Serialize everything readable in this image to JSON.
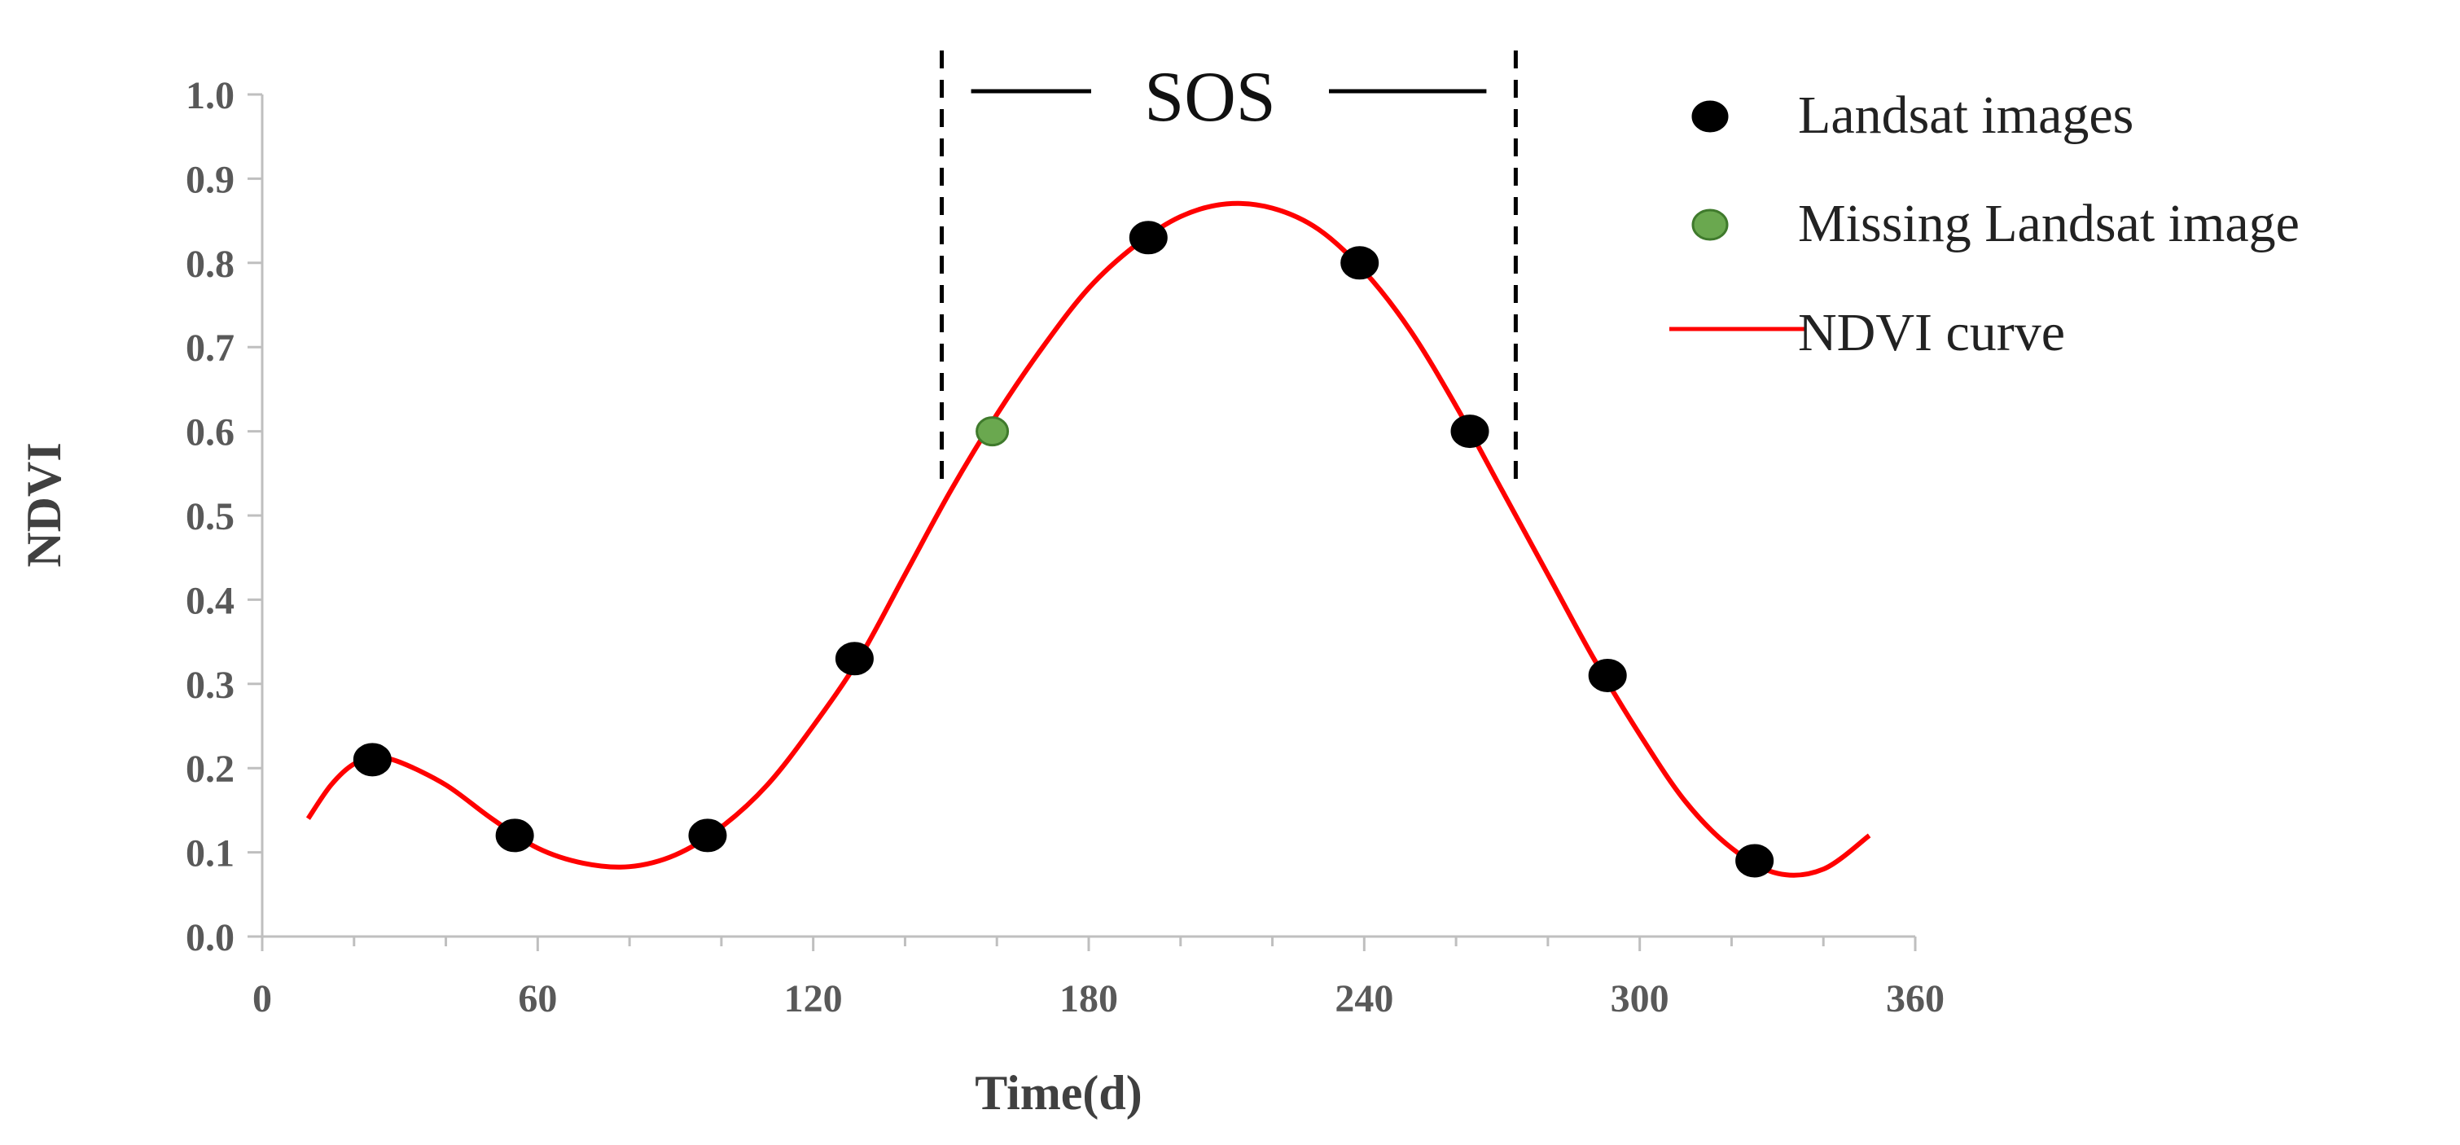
{
  "chart_data": {
    "type": "scatter",
    "title": "",
    "xlabel": "Time(d)",
    "ylabel": "NDVI",
    "xlim": [
      0,
      360
    ],
    "ylim": [
      0,
      1.0
    ],
    "xticks": [
      0,
      60,
      120,
      180,
      240,
      300,
      360
    ],
    "xtick_labels": [
      "0",
      "60",
      "120",
      "180",
      "240",
      "300",
      "360"
    ],
    "yticks": [
      0,
      0.1,
      0.2,
      0.3,
      0.4,
      0.5,
      0.6,
      0.7,
      0.8,
      0.9,
      1.0
    ],
    "ytick_labels": [
      "0.0",
      "0.1",
      "0.2",
      "0.3",
      "0.4",
      "0.5",
      "0.6",
      "0.7",
      "0.8",
      "0.9",
      "1.0"
    ],
    "grid": false,
    "legend_position": "right",
    "series": [
      {
        "name": "Landsat images",
        "kind": "scatter",
        "color": "#000000",
        "points": [
          {
            "x": 24,
            "y": 0.21
          },
          {
            "x": 55,
            "y": 0.12
          },
          {
            "x": 97,
            "y": 0.12
          },
          {
            "x": 129,
            "y": 0.33
          },
          {
            "x": 193,
            "y": 0.83
          },
          {
            "x": 239,
            "y": 0.8
          },
          {
            "x": 263,
            "y": 0.6
          },
          {
            "x": 293,
            "y": 0.31
          },
          {
            "x": 325,
            "y": 0.09
          }
        ]
      },
      {
        "name": "Missing Landsat image",
        "kind": "scatter",
        "color": "#6aa84f",
        "points": [
          {
            "x": 159,
            "y": 0.6
          }
        ]
      },
      {
        "name": "NDVI curve",
        "kind": "line",
        "color": "#ff0000",
        "points": [
          {
            "x": 10,
            "y": 0.14
          },
          {
            "x": 15,
            "y": 0.18
          },
          {
            "x": 20,
            "y": 0.205
          },
          {
            "x": 25,
            "y": 0.212
          },
          {
            "x": 30,
            "y": 0.207
          },
          {
            "x": 40,
            "y": 0.18
          },
          {
            "x": 50,
            "y": 0.14
          },
          {
            "x": 60,
            "y": 0.105
          },
          {
            "x": 70,
            "y": 0.087
          },
          {
            "x": 80,
            "y": 0.083
          },
          {
            "x": 90,
            "y": 0.097
          },
          {
            "x": 100,
            "y": 0.13
          },
          {
            "x": 110,
            "y": 0.18
          },
          {
            "x": 120,
            "y": 0.25
          },
          {
            "x": 130,
            "y": 0.33
          },
          {
            "x": 140,
            "y": 0.43
          },
          {
            "x": 150,
            "y": 0.53
          },
          {
            "x": 160,
            "y": 0.62
          },
          {
            "x": 170,
            "y": 0.7
          },
          {
            "x": 180,
            "y": 0.77
          },
          {
            "x": 190,
            "y": 0.82
          },
          {
            "x": 200,
            "y": 0.855
          },
          {
            "x": 210,
            "y": 0.87
          },
          {
            "x": 220,
            "y": 0.865
          },
          {
            "x": 230,
            "y": 0.84
          },
          {
            "x": 240,
            "y": 0.79
          },
          {
            "x": 250,
            "y": 0.72
          },
          {
            "x": 260,
            "y": 0.63
          },
          {
            "x": 270,
            "y": 0.53
          },
          {
            "x": 280,
            "y": 0.43
          },
          {
            "x": 290,
            "y": 0.33
          },
          {
            "x": 300,
            "y": 0.24
          },
          {
            "x": 310,
            "y": 0.16
          },
          {
            "x": 320,
            "y": 0.105
          },
          {
            "x": 330,
            "y": 0.075
          },
          {
            "x": 340,
            "y": 0.08
          },
          {
            "x": 350,
            "y": 0.12
          }
        ]
      }
    ],
    "annotations": {
      "sos_label": "SOS",
      "sos_start_x": 148,
      "sos_end_x": 273,
      "sos_line_bottom_y": 0.54
    }
  }
}
